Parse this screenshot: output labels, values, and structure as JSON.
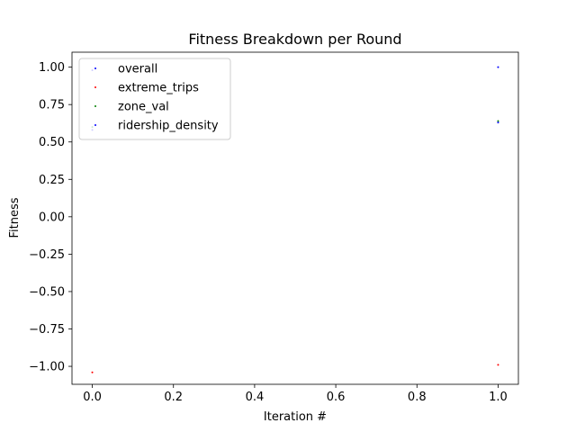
{
  "chart_data": {
    "type": "scatter",
    "title": "Fitness Breakdown per Round",
    "xlabel": "Iteration #",
    "ylabel": "Fitness",
    "xlim": [
      -0.05,
      1.05
    ],
    "ylim": [
      -1.12,
      1.1
    ],
    "xticks": [
      0.0,
      0.2,
      0.4,
      0.6,
      0.8,
      1.0
    ],
    "xtick_labels": [
      "0.0",
      "0.2",
      "0.4",
      "0.6",
      "0.8",
      "1.0"
    ],
    "yticks": [
      1.0,
      0.75,
      0.5,
      0.25,
      0.0,
      -0.25,
      -0.5,
      -0.75,
      -1.0
    ],
    "ytick_labels": [
      "1.00",
      "0.75",
      "0.50",
      "0.25",
      "0.00",
      "−0.25",
      "−0.50",
      "−0.75",
      "−1.00"
    ],
    "grid": false,
    "legend_position": "top-left",
    "series": [
      {
        "name": "overall",
        "color": "#0000ff",
        "points": [
          [
            0,
            0.98
          ],
          [
            1,
            1.0
          ]
        ]
      },
      {
        "name": "extreme_trips",
        "color": "#ff0000",
        "points": [
          [
            0,
            -1.04
          ],
          [
            1,
            -0.99
          ]
        ]
      },
      {
        "name": "zone_val",
        "color": "#008000",
        "points": [
          [
            0,
            0.6
          ],
          [
            1,
            0.64
          ]
        ]
      },
      {
        "name": "ridership_density",
        "color": "#0000ff",
        "points": [
          [
            0,
            0.58
          ],
          [
            1,
            0.63
          ]
        ]
      }
    ]
  }
}
